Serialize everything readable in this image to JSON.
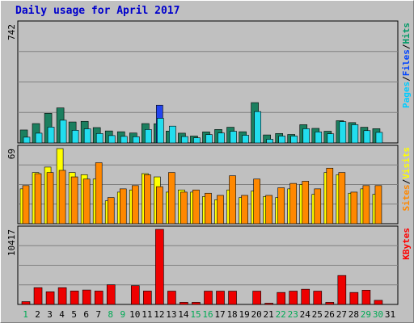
{
  "title": "Daily usage for April 2017",
  "chart_data": [
    {
      "type": "bar",
      "panel": "hits-files-pages",
      "categories": [
        "1",
        "2",
        "3",
        "4",
        "5",
        "6",
        "7",
        "8",
        "9",
        "10",
        "11",
        "12",
        "13",
        "14",
        "15",
        "16",
        "17",
        "18",
        "19",
        "20",
        "21",
        "22",
        "23",
        "24",
        "25",
        "26",
        "27",
        "28",
        "29",
        "30",
        "31"
      ],
      "ymax_label": "742",
      "ylim": [
        0,
        742
      ],
      "legend": [
        {
          "text": "Hits",
          "color": "#009966"
        },
        {
          "text": "Files",
          "color": "#0044ff"
        },
        {
          "text": "Pages",
          "color": "#00ccff"
        }
      ],
      "series": [
        {
          "name": "Hits",
          "color": "#1b7f5f",
          "values": [
            81,
            121,
            185,
            219,
            131,
            135,
            96,
            75,
            70,
            62,
            121,
            120,
            74,
            61,
            43,
            69,
            84,
            98,
            70,
            252,
            50,
            59,
            53,
            114,
            91,
            73,
            139,
            127,
            98,
            89,
            0
          ]
        },
        {
          "name": "Files",
          "color": "#2244ee",
          "values": [
            0,
            0,
            0,
            0,
            0,
            0,
            0,
            0,
            0,
            0,
            0,
            236,
            0,
            0,
            0,
            0,
            0,
            0,
            0,
            0,
            0,
            0,
            0,
            0,
            0,
            0,
            0,
            0,
            0,
            0,
            0
          ]
        },
        {
          "name": "Pages",
          "color": "#22ddee",
          "values": [
            36,
            61,
            99,
            142,
            79,
            88,
            59,
            46,
            41,
            39,
            84,
            154,
            105,
            40,
            32,
            52,
            62,
            73,
            48,
            196,
            23,
            43,
            43,
            89,
            69,
            57,
            133,
            114,
            77,
            66,
            0
          ]
        }
      ]
    },
    {
      "type": "bar",
      "panel": "visits-sites",
      "categories": [
        "1",
        "2",
        "3",
        "4",
        "5",
        "6",
        "7",
        "8",
        "9",
        "10",
        "11",
        "12",
        "13",
        "14",
        "15",
        "16",
        "17",
        "18",
        "19",
        "20",
        "21",
        "22",
        "23",
        "24",
        "25",
        "26",
        "27",
        "28",
        "29",
        "30",
        "31"
      ],
      "ymax_label": "69",
      "ylim": [
        0,
        69
      ],
      "legend": [
        {
          "text": "Visits",
          "color": "#ffff00"
        },
        {
          "text": "Sites",
          "color": "#ff8800"
        }
      ],
      "series": [
        {
          "name": "Visits",
          "color": "#ffff00",
          "values": [
            32,
            47,
            52,
            69,
            47,
            45,
            41,
            21,
            29,
            31,
            46,
            43,
            29,
            31,
            29,
            25,
            22,
            31,
            24,
            30,
            25,
            24,
            32,
            36,
            27,
            47,
            45,
            28,
            32,
            27,
            0
          ]
        },
        {
          "name": "Sites",
          "color": "#ff8800",
          "values": [
            35,
            46,
            47,
            49,
            43,
            41,
            56,
            24,
            32,
            35,
            45,
            34,
            47,
            29,
            31,
            28,
            26,
            44,
            26,
            41,
            26,
            33,
            37,
            39,
            32,
            51,
            47,
            29,
            35,
            35,
            0
          ]
        }
      ]
    },
    {
      "type": "bar",
      "panel": "kbytes",
      "categories": [
        "1",
        "2",
        "3",
        "4",
        "5",
        "6",
        "7",
        "8",
        "9",
        "10",
        "11",
        "12",
        "13",
        "14",
        "15",
        "16",
        "17",
        "18",
        "19",
        "20",
        "21",
        "22",
        "23",
        "24",
        "25",
        "26",
        "27",
        "28",
        "29",
        "30",
        "31"
      ],
      "ymax_label": "10417",
      "ylim": [
        0,
        10417
      ],
      "legend": [
        {
          "text": "KBytes",
          "color": "#ff0000"
        }
      ],
      "series": [
        {
          "name": "KBytes",
          "color": "#ee0000",
          "values": [
            391,
            2325,
            1758,
            2325,
            1865,
            2006,
            1861,
            2728,
            0,
            2608,
            1861,
            10417,
            1848,
            293,
            293,
            1848,
            1848,
            1848,
            0,
            1848,
            174,
            1663,
            1848,
            2112,
            1848,
            293,
            4015,
            1663,
            1980,
            570,
            0
          ]
        }
      ]
    }
  ],
  "day_label_colors": {
    "weekday": "#000000",
    "weekend": "#00aa55"
  },
  "weekend_days": [
    1,
    8,
    15,
    22,
    29,
    30,
    9,
    16,
    23
  ]
}
